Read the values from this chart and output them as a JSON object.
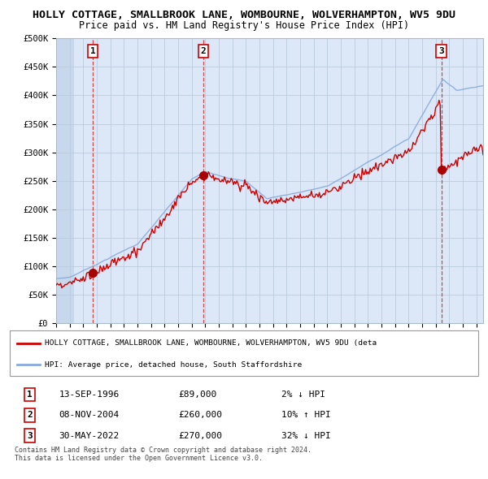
{
  "title1": "HOLLY COTTAGE, SMALLBROOK LANE, WOMBOURNE, WOLVERHAMPTON, WV5 9DU",
  "title2": "Price paid vs. HM Land Registry's House Price Index (HPI)",
  "legend_line1": "HOLLY COTTAGE, SMALLBROOK LANE, WOMBOURNE, WOLVERHAMPTON, WV5 9DU (deta",
  "legend_line2": "HPI: Average price, detached house, South Staffordshire",
  "footer": "Contains HM Land Registry data © Crown copyright and database right 2024.\nThis data is licensed under the Open Government Licence v3.0.",
  "transactions": [
    {
      "num": 1,
      "date": "13-SEP-1996",
      "price": 89000,
      "hpi_rel": "2% ↓ HPI",
      "x": 1996.71
    },
    {
      "num": 2,
      "date": "08-NOV-2004",
      "price": 260000,
      "hpi_rel": "10% ↑ HPI",
      "x": 2004.86
    },
    {
      "num": 3,
      "date": "30-MAY-2022",
      "price": 270000,
      "hpi_rel": "32% ↓ HPI",
      "x": 2022.41
    }
  ],
  "price_color": "#cc0000",
  "hpi_color": "#88aadd",
  "transaction_dot_color": "#aa0000",
  "vline_color": "#cc0000",
  "ylim": [
    0,
    500000
  ],
  "xlim_start": 1994.0,
  "xlim_end": 2025.5,
  "yticks": [
    0,
    50000,
    100000,
    150000,
    200000,
    250000,
    300000,
    350000,
    400000,
    450000,
    500000
  ],
  "ytick_labels": [
    "£0",
    "£50K",
    "£100K",
    "£150K",
    "£200K",
    "£250K",
    "£300K",
    "£350K",
    "£400K",
    "£450K",
    "£500K"
  ],
  "grid_color": "#bbccdd",
  "bg_color": "#dce8f8",
  "hatch_bg": "#c8d8ec",
  "plot_bg": "#ffffff",
  "title_fontsize": 9.5,
  "subtitle_fontsize": 8.5
}
